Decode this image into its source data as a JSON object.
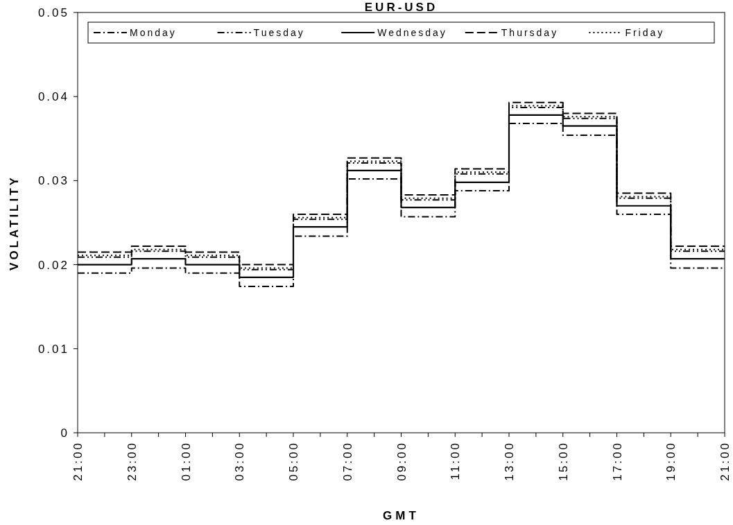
{
  "chart_data": {
    "type": "step",
    "title": "EUR-USD",
    "xlabel": "GMT",
    "ylabel": "VOLATILITY",
    "categories": [
      "21:00",
      "23:00",
      "01:00",
      "03:00",
      "05:00",
      "07:00",
      "09:00",
      "11:00",
      "13:00",
      "15:00",
      "17:00",
      "19:00",
      "21:00"
    ],
    "ylim": [
      0,
      0.05
    ],
    "yticks": [
      0,
      0.01,
      0.02,
      0.03,
      0.04,
      0.05
    ],
    "legend": "top",
    "grid": false,
    "series": [
      {
        "name": "Monday",
        "color": "#000000",
        "line_style": "dashdot",
        "values": [
          0.019,
          0.0196,
          0.019,
          0.0174,
          0.0234,
          0.0302,
          0.0257,
          0.0288,
          0.0368,
          0.0354,
          0.026,
          0.0196,
          0.0196
        ]
      },
      {
        "name": "Tuesday",
        "color": "#000000",
        "line_style": "dashdotdot",
        "values": [
          0.0209,
          0.0216,
          0.0209,
          0.0194,
          0.0254,
          0.0321,
          0.0277,
          0.0308,
          0.0387,
          0.0374,
          0.0279,
          0.0216,
          0.0216
        ]
      },
      {
        "name": "Wednesday",
        "color": "#000000",
        "line_style": "solid",
        "values": [
          0.02,
          0.0207,
          0.02,
          0.0185,
          0.0245,
          0.0312,
          0.0268,
          0.0298,
          0.0378,
          0.0365,
          0.027,
          0.0207,
          0.0207
        ]
      },
      {
        "name": "Thursday",
        "color": "#000000",
        "line_style": "dashed",
        "values": [
          0.0215,
          0.0222,
          0.0215,
          0.02,
          0.026,
          0.0327,
          0.0283,
          0.0314,
          0.0393,
          0.038,
          0.0285,
          0.0222,
          0.0222
        ]
      },
      {
        "name": "Friday",
        "color": "#000000",
        "line_style": "dotted",
        "values": [
          0.0211,
          0.0218,
          0.0211,
          0.0196,
          0.0256,
          0.0323,
          0.0279,
          0.031,
          0.0389,
          0.0376,
          0.0281,
          0.0218,
          0.0218
        ]
      }
    ]
  }
}
